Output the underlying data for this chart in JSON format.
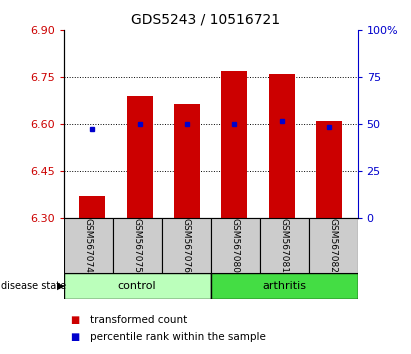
{
  "title": "GDS5243 / 10516721",
  "samples": [
    "GSM567074",
    "GSM567075",
    "GSM567076",
    "GSM567080",
    "GSM567081",
    "GSM567082"
  ],
  "bar_bottom": 6.3,
  "bar_tops": [
    6.37,
    6.69,
    6.665,
    6.77,
    6.76,
    6.61
  ],
  "percentile_values": [
    6.585,
    6.6,
    6.6,
    6.6,
    6.61,
    6.59
  ],
  "ylim": [
    6.3,
    6.9
  ],
  "yticks_left": [
    6.3,
    6.45,
    6.6,
    6.75,
    6.9
  ],
  "yticks_right": [
    0,
    25,
    50,
    75,
    100
  ],
  "ylim_right": [
    0,
    100
  ],
  "bar_color": "#cc0000",
  "percentile_color": "#0000cc",
  "left_tick_color": "#cc0000",
  "right_tick_color": "#0000cc",
  "control_label": "control",
  "arthritis_label": "arthritis",
  "disease_state_label": "disease state",
  "control_color": "#bbffbb",
  "arthritis_color": "#44dd44",
  "sample_label_bg": "#cccccc",
  "legend_red_label": "transformed count",
  "legend_blue_label": "percentile rank within the sample",
  "bar_width": 0.55,
  "title_fontsize": 10,
  "tick_fontsize": 8,
  "sample_fontsize": 6.5,
  "label_fontsize": 8,
  "legend_fontsize": 7.5
}
